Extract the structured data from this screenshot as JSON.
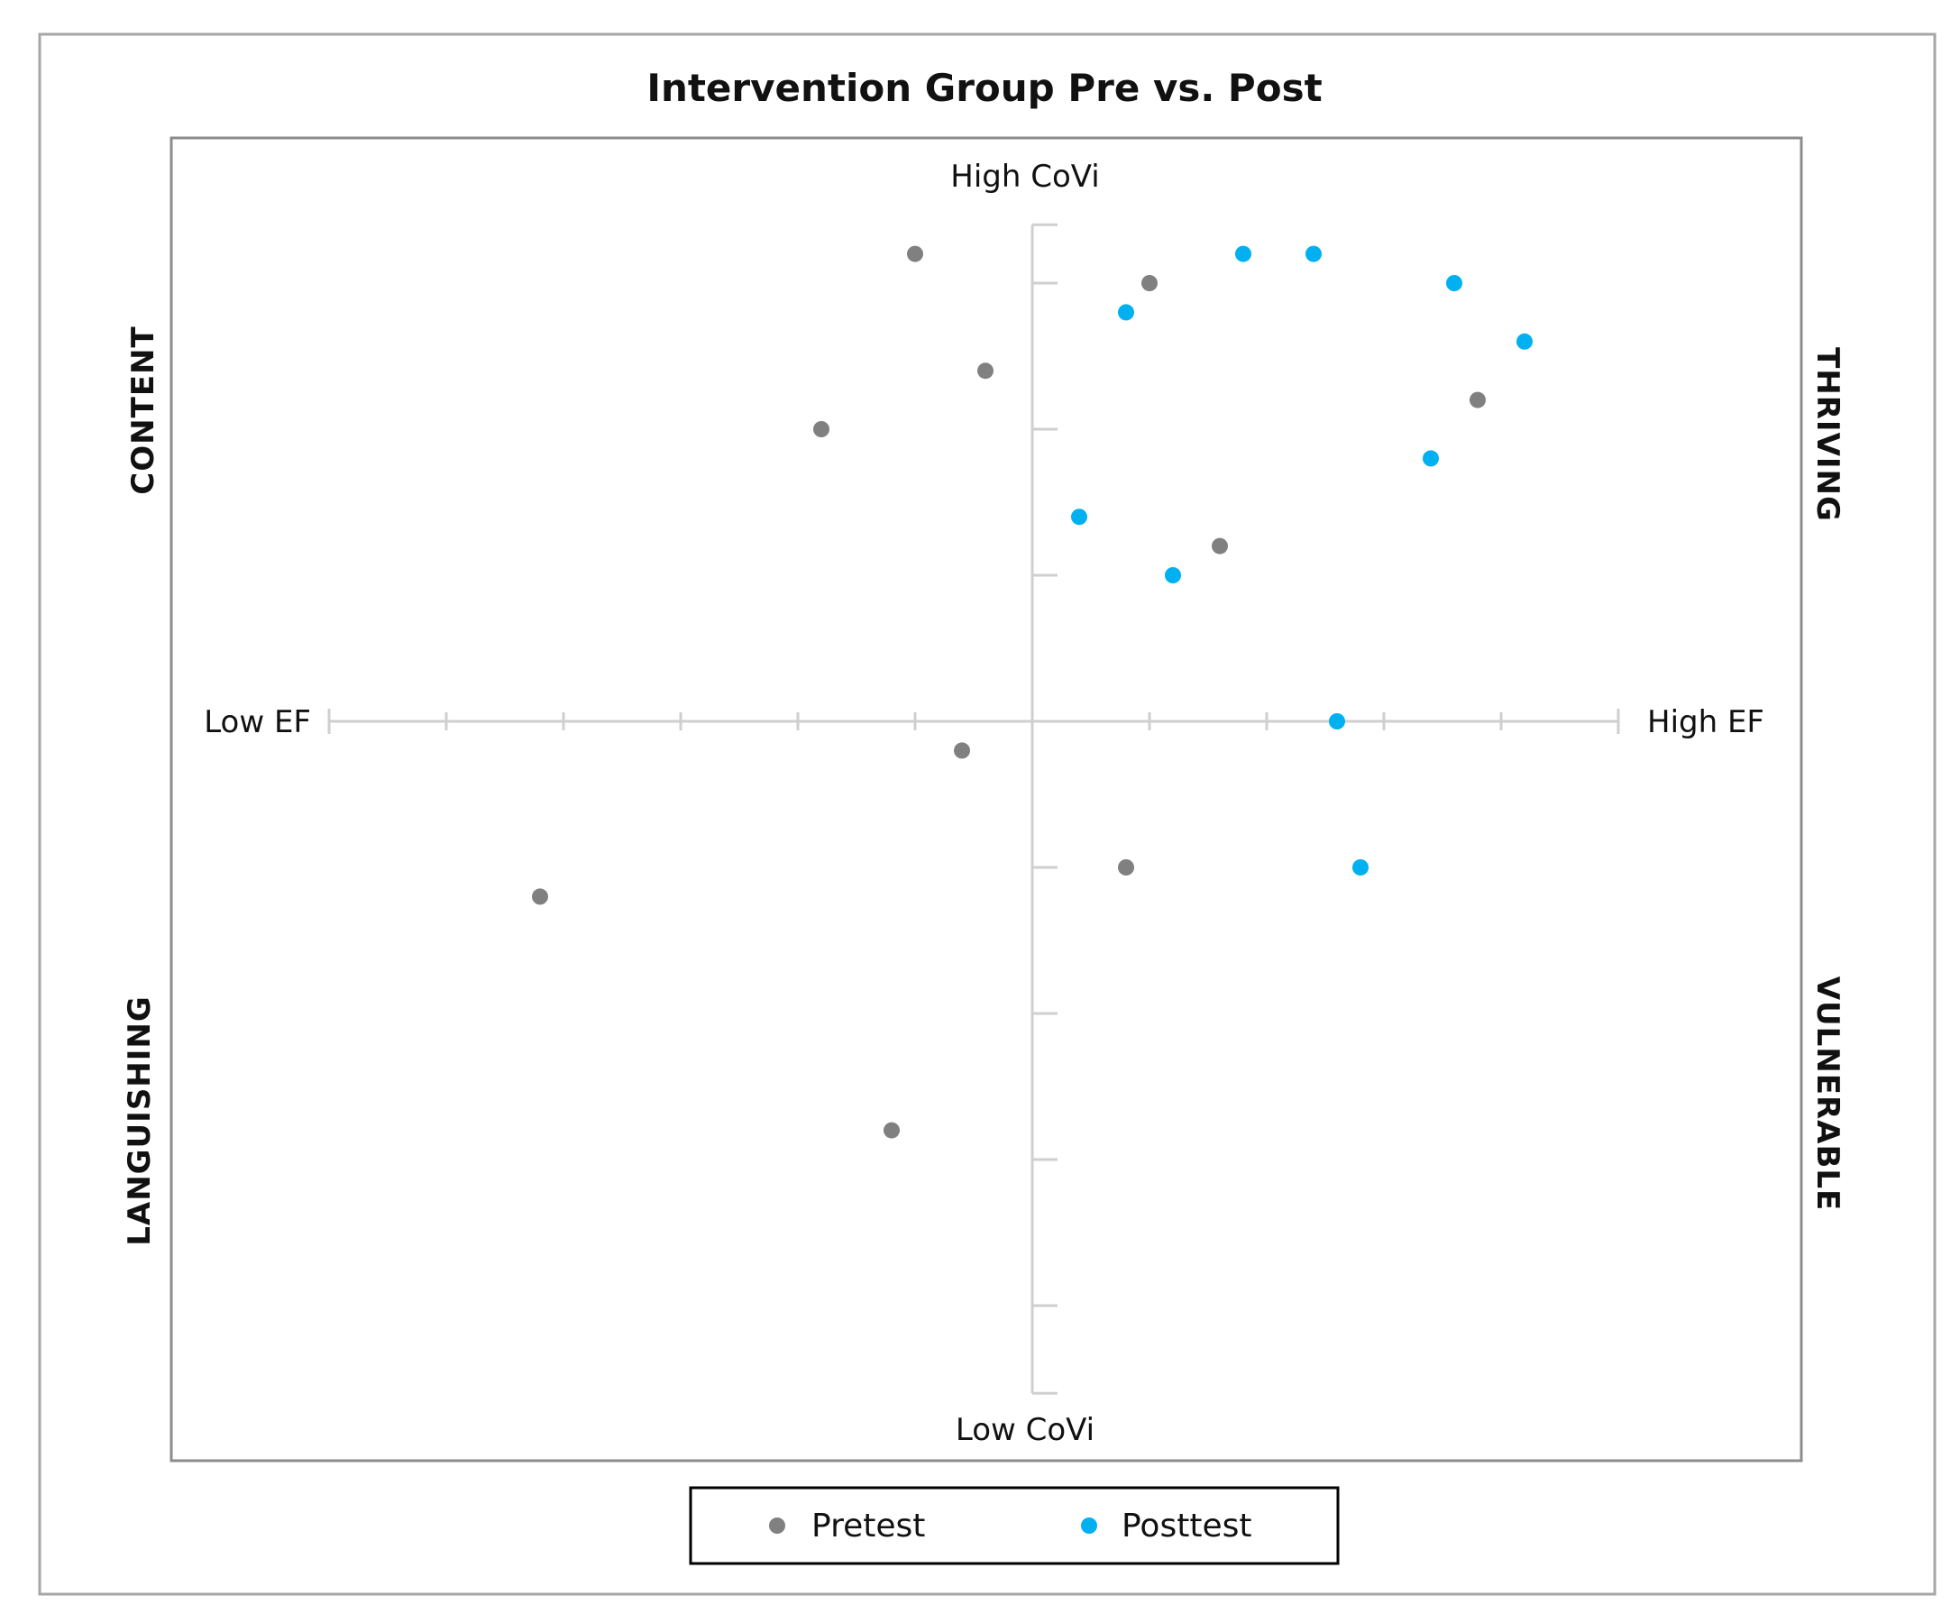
{
  "chart_data": {
    "type": "scatter",
    "title": "Intervention Group Pre vs. Post",
    "x_axis": {
      "low_label": "Low EF",
      "high_label": "High EF",
      "xlim": [
        -6,
        5
      ],
      "ticks": [
        -6,
        -5,
        -4,
        -3,
        -2,
        -1,
        0,
        1,
        2,
        3,
        4,
        5
      ]
    },
    "y_axis": {
      "high_label": "High CoVi",
      "low_label": "Low CoVi",
      "ylim": [
        -4.6,
        3.4
      ],
      "ticks": [
        -4,
        -3,
        -2,
        -1,
        0,
        1,
        2,
        3
      ]
    },
    "quadrants": {
      "top_left": "CONTENT",
      "top_right": "THRIVING",
      "bottom_left": "LANGUISHING",
      "bottom_right": "VULNERABLE"
    },
    "legend": {
      "placement": "bottom"
    },
    "series": [
      {
        "name": "Pretest",
        "color": "#808080",
        "points": [
          {
            "x": -1.0,
            "y": 3.2
          },
          {
            "x": 1.0,
            "y": 3.0
          },
          {
            "x": -0.4,
            "y": 2.4
          },
          {
            "x": -1.8,
            "y": 2.0
          },
          {
            "x": 3.8,
            "y": 2.2
          },
          {
            "x": 1.6,
            "y": 1.2
          },
          {
            "x": -0.6,
            "y": -0.2
          },
          {
            "x": 0.8,
            "y": -1.0
          },
          {
            "x": -4.2,
            "y": -1.2
          },
          {
            "x": -1.2,
            "y": -2.8
          }
        ]
      },
      {
        "name": "Posttest",
        "color": "#00b0f0",
        "points": [
          {
            "x": 1.8,
            "y": 3.2
          },
          {
            "x": 2.4,
            "y": 3.2
          },
          {
            "x": 3.6,
            "y": 3.0
          },
          {
            "x": 0.8,
            "y": 2.8
          },
          {
            "x": 4.2,
            "y": 2.6
          },
          {
            "x": 3.4,
            "y": 1.8
          },
          {
            "x": 0.4,
            "y": 1.4
          },
          {
            "x": 1.2,
            "y": 1.0
          },
          {
            "x": 2.6,
            "y": 0.0
          },
          {
            "x": 2.8,
            "y": -1.0
          }
        ]
      }
    ]
  }
}
